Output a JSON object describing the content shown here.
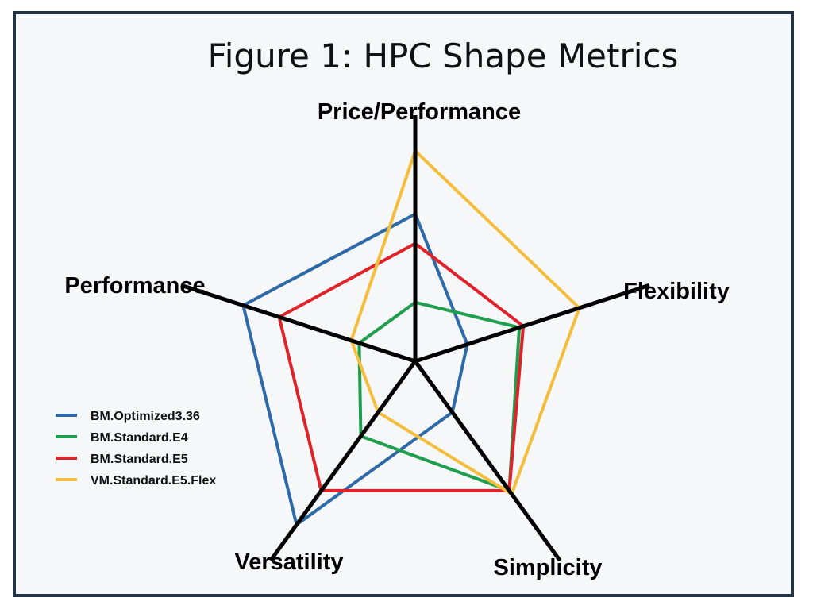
{
  "chart_data": {
    "type": "radar",
    "title": "Figure 1: HPC Shape Metrics",
    "axes": [
      "Price/Performance",
      "Flexibility",
      "Simplicity",
      "Versatility",
      "Performance"
    ],
    "range": [
      0,
      5
    ],
    "series": [
      {
        "name": "BM.Optimized3.36",
        "color": "#2e6aa8",
        "values": [
          3.5,
          1.3,
          1.5,
          4.8,
          4.3
        ]
      },
      {
        "name": "BM.Standard.E4",
        "color": "#1f9e4f",
        "values": [
          1.4,
          2.6,
          3.8,
          2.2,
          1.4
        ]
      },
      {
        "name": "BM.Standard.E5",
        "color": "#e0232b",
        "values": [
          2.8,
          2.7,
          3.8,
          3.8,
          3.4
        ]
      },
      {
        "name": "VM.Standard.E5.Flex",
        "color": "#f3be3d",
        "values": [
          5.0,
          4.1,
          3.9,
          1.5,
          1.6
        ]
      }
    ]
  }
}
